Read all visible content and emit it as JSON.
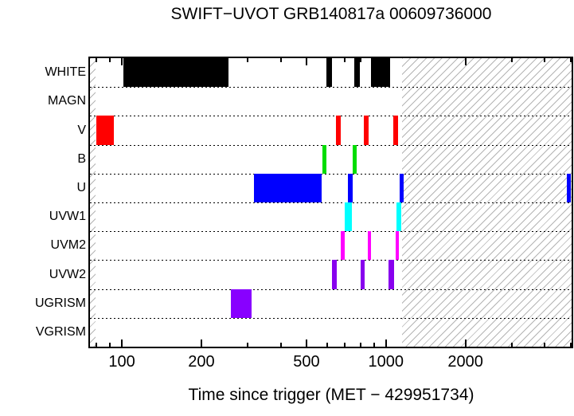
{
  "chart_data": {
    "type": "bar",
    "subtype": "horizontal-interval-timeline",
    "title": "SWIFT−UVOT GRB140817a 00609736000",
    "xlabel": "Time since trigger (MET − 429951734)",
    "x_scale": "log10",
    "x_range": [
      75.7,
      5050
    ],
    "x_major_ticks": [
      100,
      200,
      500,
      1000,
      2000
    ],
    "x_minor_ticks": [
      80,
      90,
      300,
      400,
      600,
      700,
      800,
      900,
      3000,
      4000,
      5000
    ],
    "grid": "dotted-horizontal-row-separators",
    "legend_position": "none",
    "hatched_regions": [
      [
        75.7,
        79.5
      ],
      [
        1150,
        5050
      ]
    ],
    "hatch_color": "#b4b4b4",
    "frame_color": "#000000",
    "rows": [
      {
        "label": "WHITE",
        "color": "#000000",
        "intervals": [
          [
            101,
            253
          ],
          [
            594,
            625
          ],
          [
            757,
            795
          ],
          [
            880,
            1035
          ]
        ]
      },
      {
        "label": "MAGN",
        "color": "#000000",
        "intervals": []
      },
      {
        "label": "V",
        "color": "#ff0000",
        "intervals": [
          [
            80,
            93
          ],
          [
            646,
            673
          ],
          [
            822,
            858
          ],
          [
            1070,
            1110
          ]
        ]
      },
      {
        "label": "B",
        "color": "#00dd00",
        "intervals": [
          [
            573,
            594
          ],
          [
            747,
            773
          ]
        ]
      },
      {
        "label": "U",
        "color": "#0000ff",
        "intervals": [
          [
            316,
            570
          ],
          [
            716,
            746
          ],
          [
            1131,
            1164
          ],
          [
            4850,
            5020
          ]
        ]
      },
      {
        "label": "UVW1",
        "color": "#00ffff",
        "intervals": [
          [
            696,
            741
          ],
          [
            1093,
            1140
          ]
        ]
      },
      {
        "label": "UVM2",
        "color": "#ff00ff",
        "intervals": [
          [
            673,
            696
          ],
          [
            851,
            881
          ],
          [
            1085,
            1123
          ]
        ]
      },
      {
        "label": "UVW2",
        "color": "#8800ee",
        "intervals": [
          [
            623,
            650
          ],
          [
            800,
            828
          ],
          [
            1020,
            1071
          ]
        ]
      },
      {
        "label": "UGRISM",
        "color": "#8800ff",
        "intervals": [
          [
            258,
            310
          ]
        ]
      },
      {
        "label": "VGRISM",
        "color": "#000000",
        "intervals": []
      }
    ]
  }
}
